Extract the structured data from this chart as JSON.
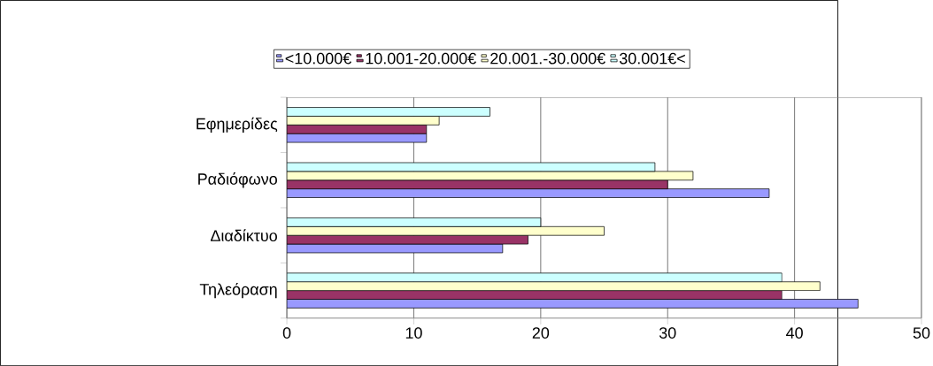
{
  "chart_data": {
    "type": "bar",
    "orientation": "horizontal",
    "categories": [
      "Εφημερίδες",
      "Ραδιόφωνο",
      "Διαδίκτυο",
      "Τηλεόραση"
    ],
    "series": [
      {
        "name": "<10.000€",
        "color": "#9999ff",
        "values": [
          11,
          38,
          17,
          45
        ]
      },
      {
        "name": "10.001-20.000€",
        "color": "#993366",
        "values": [
          11,
          30,
          19,
          39
        ]
      },
      {
        "name": "20.001.-30.000€",
        "color": "#ffffcc",
        "values": [
          12,
          32,
          25,
          42
        ]
      },
      {
        "name": "30.001€<",
        "color": "#ccffff",
        "values": [
          16,
          29,
          20,
          39
        ]
      }
    ],
    "xlim": [
      0,
      50
    ],
    "xticks": [
      0,
      10,
      20,
      30,
      40,
      50
    ],
    "grid": "x",
    "legend": "top"
  }
}
